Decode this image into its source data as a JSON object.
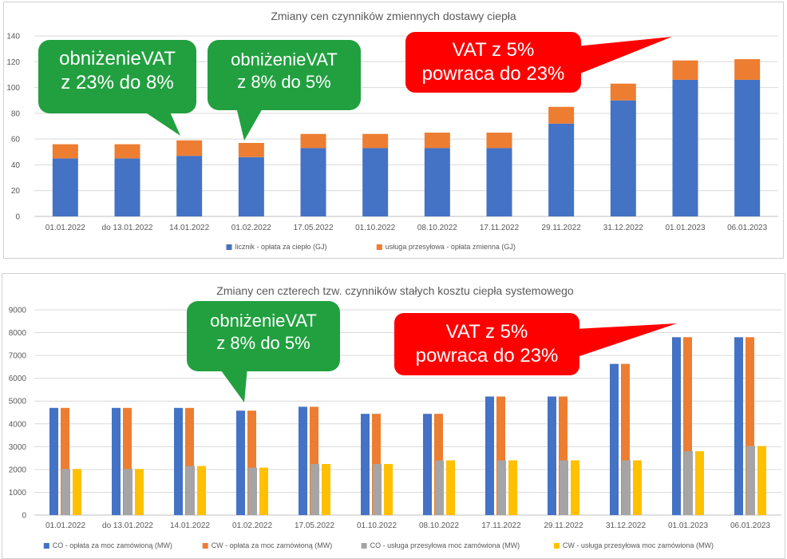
{
  "chart_data": [
    {
      "type": "bar",
      "stacked": true,
      "title": "Zmiany cen czynników zmiennych dostawy ciepła",
      "categories": [
        "01.01.2022",
        "do 13.01.2022",
        "14.01.2022",
        "01.02.2022",
        "17.05.2022",
        "01.10.2022",
        "08.10.2022",
        "17.11.2022",
        "29.11.2022",
        "31.12.2022",
        "01.01.2023",
        "06.01.2023"
      ],
      "series": [
        {
          "name": "licznik - opłata za ciepło (GJ)",
          "color": "#4472C4",
          "values": [
            45,
            45,
            47,
            46,
            53,
            53,
            53,
            53,
            72,
            90,
            106,
            106
          ]
        },
        {
          "name": "usługa przesyłowa - opłata zmienna (GJ)",
          "color": "#ED7D31",
          "values": [
            11,
            11,
            12,
            11,
            11,
            11,
            12,
            12,
            13,
            13,
            15,
            16
          ]
        }
      ],
      "ylim": [
        0,
        140
      ],
      "yticks": [
        "0",
        "20",
        "40",
        "60",
        "80",
        "100",
        "120",
        "140"
      ],
      "legend": "bottom",
      "grid": true
    },
    {
      "type": "bar",
      "stacked": false,
      "title": "Zmiany cen czterech tzw. czynników stałych kosztu ciepła systemowego",
      "categories": [
        "01.01.2022",
        "do 13.01.2022",
        "14.01.2022",
        "01.02.2022",
        "17.05.2022",
        "01.10.2022",
        "08.10.2022",
        "17.11.2022",
        "29.11.2022",
        "31.12.2022",
        "01.01.2023",
        "06.01.2023"
      ],
      "series": [
        {
          "name": "CO - opłata za moc zamówioną (MW)",
          "color": "#4472C4",
          "values": [
            4700,
            4700,
            4700,
            4580,
            4750,
            4440,
            4440,
            5200,
            5200,
            6630,
            7800,
            7800
          ]
        },
        {
          "name": "CW - opłata za moc zamówioną (MW)",
          "color": "#ED7D31",
          "values": [
            4700,
            4700,
            4700,
            4580,
            4750,
            4440,
            4440,
            5200,
            5200,
            6630,
            7800,
            7800
          ]
        },
        {
          "name": "CO - usługa przesyłowa moc zamówiona (MW)",
          "color": "#A5A5A5",
          "values": [
            2020,
            2020,
            2150,
            2080,
            2240,
            2240,
            2400,
            2400,
            2400,
            2400,
            2800,
            3030
          ]
        },
        {
          "name": "CW - usługa przesyłowa moc zamówiona (MW)",
          "color": "#FFC000",
          "values": [
            2020,
            2020,
            2150,
            2080,
            2240,
            2240,
            2400,
            2400,
            2400,
            2400,
            2800,
            3030
          ]
        }
      ],
      "ylim": [
        0,
        9000
      ],
      "yticks": [
        "0",
        "1000",
        "2000",
        "3000",
        "4000",
        "5000",
        "6000",
        "7000",
        "8000",
        "9000"
      ],
      "legend": "bottom",
      "grid": true
    }
  ],
  "callouts": {
    "c1_line1": "obniżenieVAT",
    "c1_line2": "z 23% do 8%",
    "c2_line1": "obniżenieVAT",
    "c2_line2": "z 8% do 5%",
    "c3_line1": "VAT z 5%",
    "c3_line2": "powraca do 23%",
    "c4_line1": "obniżenieVAT",
    "c4_line2": "z 8% do 5%",
    "c5_line1": "VAT z 5%",
    "c5_line2": "powraca do 23%",
    "green_color": "#22A040",
    "red_color": "#FF0000"
  }
}
